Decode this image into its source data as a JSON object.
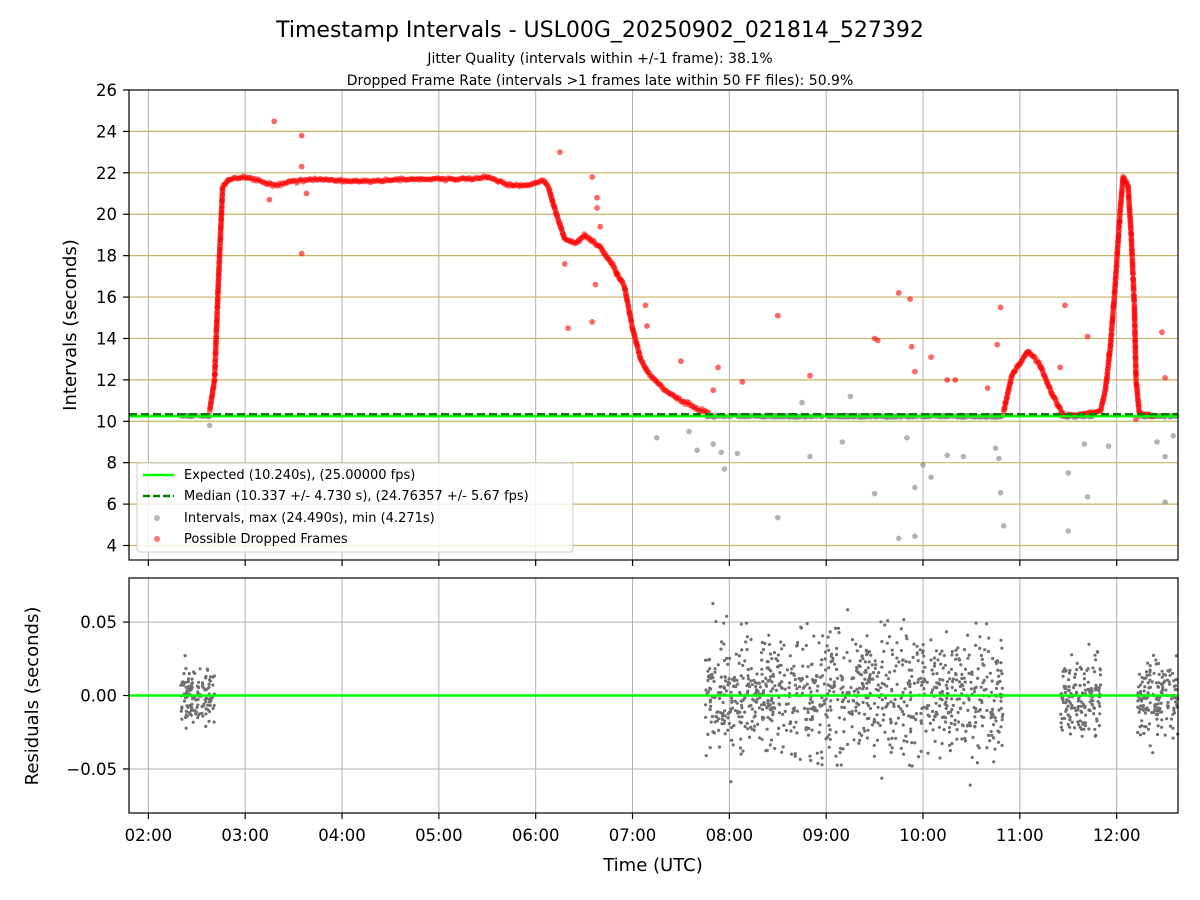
{
  "figure": {
    "title": "Timestamp Intervals - USL00G_20250902_021814_527392",
    "subtitle1": "Jitter Quality (intervals within +/-1 frame): 38.1%",
    "subtitle2": "Dropped Frame Rate (intervals >1 frames late within 50 FF files): 50.9%"
  },
  "colors": {
    "expected": "#00ff00",
    "median": "#008000",
    "intervals": "#808080",
    "dropped": "#ff0000",
    "hgrid": "#c8b464",
    "grid": "#b0b0b0",
    "residuals": "#707070"
  },
  "chart_data": [
    {
      "type": "scatter",
      "xlabel": "",
      "ylabel": "Intervals (seconds)",
      "xlim": [
        "01:48",
        "12:38"
      ],
      "ylim": [
        3.3,
        26
      ],
      "yticks": [
        4,
        6,
        8,
        10,
        12,
        14,
        16,
        18,
        20,
        22,
        24,
        26
      ],
      "hlines": [
        4,
        6,
        8,
        10,
        12,
        14,
        16,
        18,
        20,
        22,
        24
      ],
      "expected": 10.24,
      "median": 10.337,
      "legend_position": "lower left",
      "legend": [
        "Expected (10.240s), (25.00000 fps)",
        "Median (10.337 +/- 4.730 s), (24.76357 +/- 5.67 fps)",
        "Intervals, max (24.490s), min (4.271s)",
        "Possible Dropped Frames"
      ],
      "intervals": {
        "segments": [
          {
            "from": "02:20",
            "to": "02:38",
            "value": 10.25
          },
          {
            "from": "07:45",
            "to": "10:50",
            "value": 10.24
          },
          {
            "from": "11:25",
            "to": "11:45",
            "value": 10.25
          },
          {
            "from": "12:12",
            "to": "12:38",
            "value": 10.25
          }
        ],
        "outliers": [
          [
            "02:38",
            9.8
          ],
          [
            "07:15",
            9.2
          ],
          [
            "07:35",
            9.5
          ],
          [
            "07:40",
            8.6
          ],
          [
            "07:50",
            8.9
          ],
          [
            "07:55",
            8.5
          ],
          [
            "07:57",
            7.7
          ],
          [
            "08:05",
            8.45
          ],
          [
            "08:30",
            5.35
          ],
          [
            "08:50",
            8.3
          ],
          [
            "09:10",
            9.0
          ],
          [
            "09:30",
            6.5
          ],
          [
            "09:45",
            4.35
          ],
          [
            "09:50",
            9.2
          ],
          [
            "09:55",
            6.8
          ],
          [
            "10:00",
            7.9
          ],
          [
            "10:05",
            7.3
          ],
          [
            "10:15",
            8.35
          ],
          [
            "10:25",
            8.3
          ],
          [
            "10:45",
            8.7
          ],
          [
            "10:48",
            6.55
          ],
          [
            "10:50",
            4.95
          ],
          [
            "10:47",
            8.2
          ],
          [
            "11:30",
            4.7
          ],
          [
            "11:30",
            7.5
          ],
          [
            "11:40",
            8.9
          ],
          [
            "11:42",
            6.35
          ],
          [
            "11:55",
            8.8
          ],
          [
            "12:25",
            9.0
          ],
          [
            "12:30",
            8.3
          ],
          [
            "12:35",
            9.3
          ],
          [
            "12:30",
            6.1
          ],
          [
            "09:55",
            4.45
          ],
          [
            "08:45",
            10.9
          ],
          [
            "09:15",
            11.2
          ]
        ]
      },
      "dropped_frames": {
        "curve": [
          [
            "02:38",
            10.5
          ],
          [
            "02:41",
            12.0
          ],
          [
            "02:43",
            16.0
          ],
          [
            "02:46",
            21.3
          ],
          [
            "02:50",
            21.7
          ],
          [
            "03:00",
            21.8
          ],
          [
            "03:10",
            21.6
          ],
          [
            "03:20",
            21.4
          ],
          [
            "03:30",
            21.6
          ],
          [
            "03:45",
            21.7
          ],
          [
            "04:00",
            21.6
          ],
          [
            "04:20",
            21.6
          ],
          [
            "04:40",
            21.7
          ],
          [
            "05:00",
            21.7
          ],
          [
            "05:20",
            21.7
          ],
          [
            "05:30",
            21.8
          ],
          [
            "05:45",
            21.4
          ],
          [
            "05:55",
            21.4
          ],
          [
            "06:05",
            21.6
          ],
          [
            "06:08",
            21.3
          ],
          [
            "06:12",
            20.2
          ],
          [
            "06:18",
            18.8
          ],
          [
            "06:25",
            18.6
          ],
          [
            "06:30",
            19.0
          ],
          [
            "06:40",
            18.4
          ],
          [
            "06:48",
            17.5
          ],
          [
            "06:55",
            16.5
          ],
          [
            "07:00",
            14.5
          ],
          [
            "07:05",
            13.0
          ],
          [
            "07:10",
            12.3
          ],
          [
            "07:20",
            11.5
          ],
          [
            "07:30",
            11.0
          ],
          [
            "07:40",
            10.6
          ],
          [
            "07:48",
            10.4
          ],
          [
            "10:50",
            10.5
          ],
          [
            "10:55",
            12.2
          ],
          [
            "11:05",
            13.4
          ],
          [
            "11:12",
            12.8
          ],
          [
            "11:20",
            11.3
          ],
          [
            "11:27",
            10.3
          ],
          [
            "11:37",
            10.3
          ],
          [
            "11:50",
            10.5
          ],
          [
            "11:53",
            11.5
          ],
          [
            "11:56",
            13.5
          ],
          [
            "11:59",
            16.5
          ],
          [
            "12:02",
            20.0
          ],
          [
            "12:04",
            21.8
          ],
          [
            "12:07",
            21.4
          ],
          [
            "12:09",
            19.0
          ],
          [
            "12:11",
            15.5
          ],
          [
            "12:12",
            12.0
          ],
          [
            "12:14",
            10.4
          ],
          [
            "12:25",
            10.2
          ]
        ],
        "outliers": [
          [
            "03:18",
            24.49
          ],
          [
            "03:35",
            23.8
          ],
          [
            "03:35",
            22.3
          ],
          [
            "03:35",
            18.1
          ],
          [
            "03:15",
            20.7
          ],
          [
            "03:38",
            21.0
          ],
          [
            "06:15",
            23.0
          ],
          [
            "06:18",
            17.6
          ],
          [
            "06:20",
            14.5
          ],
          [
            "06:35",
            21.8
          ],
          [
            "06:38",
            20.3
          ],
          [
            "06:38",
            20.8
          ],
          [
            "06:35",
            14.8
          ],
          [
            "06:37",
            16.6
          ],
          [
            "06:40",
            19.4
          ],
          [
            "06:50",
            17.1
          ],
          [
            "07:08",
            15.6
          ],
          [
            "07:09",
            14.6
          ],
          [
            "07:30",
            12.9
          ],
          [
            "07:50",
            11.5
          ],
          [
            "07:53",
            12.6
          ],
          [
            "08:08",
            11.9
          ],
          [
            "08:30",
            15.1
          ],
          [
            "08:50",
            12.2
          ],
          [
            "09:30",
            14.0
          ],
          [
            "09:32",
            13.9
          ],
          [
            "09:45",
            16.2
          ],
          [
            "09:52",
            15.9
          ],
          [
            "09:53",
            13.6
          ],
          [
            "09:55",
            12.4
          ],
          [
            "10:05",
            13.1
          ],
          [
            "10:15",
            12.0
          ],
          [
            "10:20",
            12.0
          ],
          [
            "10:40",
            11.6
          ],
          [
            "10:48",
            15.5
          ],
          [
            "10:46",
            13.7
          ],
          [
            "11:25",
            12.6
          ],
          [
            "11:28",
            15.6
          ],
          [
            "11:42",
            14.1
          ],
          [
            "11:55",
            13.2
          ],
          [
            "12:28",
            14.3
          ],
          [
            "12:30",
            12.1
          ],
          [
            "12:12",
            10.1
          ]
        ]
      }
    },
    {
      "type": "scatter",
      "xlabel": "Time (UTC)",
      "ylabel": "Residuals (seconds)",
      "xlim": [
        "01:48",
        "12:38"
      ],
      "ylim": [
        -0.08,
        0.08
      ],
      "yticks": [
        -0.05,
        0.0,
        0.05
      ],
      "ytick_labels": [
        "−0.05",
        "0.00",
        "0.05"
      ],
      "xticks": [
        "02:00",
        "03:00",
        "04:00",
        "05:00",
        "06:00",
        "07:00",
        "08:00",
        "09:00",
        "10:00",
        "11:00",
        "12:00"
      ],
      "baseline": 0.0,
      "clusters": [
        {
          "from": "02:20",
          "to": "02:41",
          "spread": 0.035
        },
        {
          "from": "07:45",
          "to": "10:50",
          "spread": 0.08
        },
        {
          "from": "11:25",
          "to": "11:50",
          "spread": 0.05
        },
        {
          "from": "12:13",
          "to": "12:38",
          "spread": 0.05
        }
      ]
    }
  ]
}
